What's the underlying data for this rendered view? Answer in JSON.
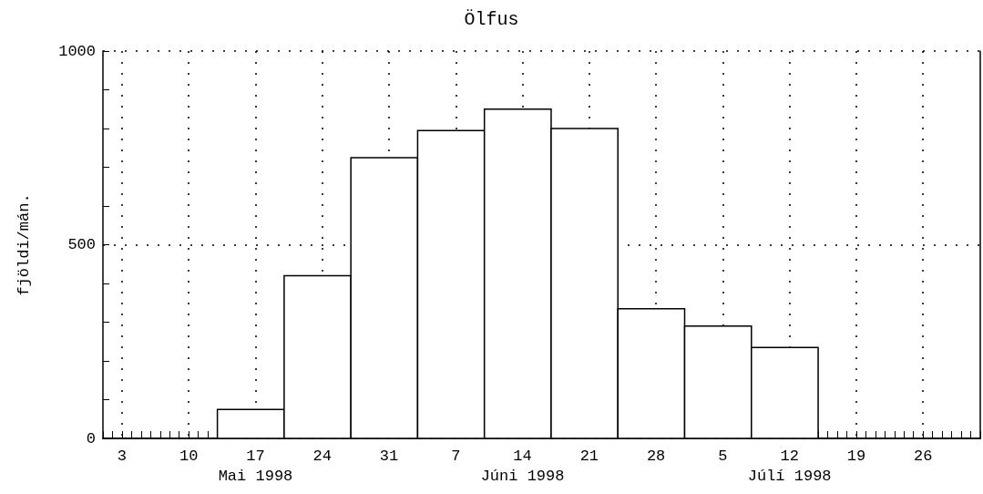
{
  "chart_data": {
    "type": "histogram",
    "title": "Ölfus",
    "ylabel": "fjöldi/mán.",
    "bins": [
      "1998-05-13",
      "1998-05-20",
      "1998-05-27",
      "1998-06-03",
      "1998-06-10",
      "1998-06-17",
      "1998-06-24",
      "1998-07-01",
      "1998-07-08",
      "1998-07-15"
    ],
    "values": [
      75,
      420,
      725,
      795,
      850,
      800,
      335,
      290,
      235
    ],
    "color": "#000000",
    "xlim": [
      "1998-05-01",
      "1998-08-01"
    ],
    "xticks": [
      {
        "value": "1998-05-01",
        "label": null
      },
      {
        "value": "1998-05-02",
        "label": null
      },
      {
        "value": "1998-05-03",
        "label": "3"
      },
      {
        "value": "1998-05-04",
        "label": null
      },
      {
        "value": "1998-05-05",
        "label": null
      },
      {
        "value": "1998-05-06",
        "label": null
      },
      {
        "value": "1998-05-07",
        "label": null
      },
      {
        "value": "1998-05-08",
        "label": null
      },
      {
        "value": "1998-05-09",
        "label": null
      },
      {
        "value": "1998-05-10",
        "label": "10"
      },
      {
        "value": "1998-05-11",
        "label": null
      },
      {
        "value": "1998-05-12",
        "label": null
      },
      {
        "value": "1998-05-13",
        "label": null
      },
      {
        "value": "1998-05-14",
        "label": null
      },
      {
        "value": "1998-05-15",
        "label": null
      },
      {
        "value": "1998-05-16",
        "label": null
      },
      {
        "value": "1998-05-17",
        "label": "17\nMai 1998"
      },
      {
        "value": "1998-05-18",
        "label": null
      },
      {
        "value": "1998-05-19",
        "label": null
      },
      {
        "value": "1998-05-20",
        "label": null
      },
      {
        "value": "1998-05-21",
        "label": null
      },
      {
        "value": "1998-05-22",
        "label": null
      },
      {
        "value": "1998-05-23",
        "label": null
      },
      {
        "value": "1998-05-24",
        "label": "24"
      },
      {
        "value": "1998-05-25",
        "label": null
      },
      {
        "value": "1998-05-26",
        "label": null
      },
      {
        "value": "1998-05-27",
        "label": null
      },
      {
        "value": "1998-05-28",
        "label": null
      },
      {
        "value": "1998-05-29",
        "label": null
      },
      {
        "value": "1998-05-30",
        "label": null
      },
      {
        "value": "1998-05-31",
        "label": "31"
      },
      {
        "value": "1998-06-01",
        "label": null
      },
      {
        "value": "1998-06-02",
        "label": null
      },
      {
        "value": "1998-06-03",
        "label": null
      },
      {
        "value": "1998-06-04",
        "label": null
      },
      {
        "value": "1998-06-05",
        "label": null
      },
      {
        "value": "1998-06-06",
        "label": null
      },
      {
        "value": "1998-06-07",
        "label": "7"
      },
      {
        "value": "1998-06-08",
        "label": null
      },
      {
        "value": "1998-06-09",
        "label": null
      },
      {
        "value": "1998-06-10",
        "label": null
      },
      {
        "value": "1998-06-11",
        "label": null
      },
      {
        "value": "1998-06-12",
        "label": null
      },
      {
        "value": "1998-06-13",
        "label": null
      },
      {
        "value": "1998-06-14",
        "label": "14\nJúni 1998"
      },
      {
        "value": "1998-06-15",
        "label": null
      },
      {
        "value": "1998-06-16",
        "label": null
      },
      {
        "value": "1998-06-17",
        "label": null
      },
      {
        "value": "1998-06-18",
        "label": null
      },
      {
        "value": "1998-06-19",
        "label": null
      },
      {
        "value": "1998-06-20",
        "label": null
      },
      {
        "value": "1998-06-21",
        "label": "21"
      },
      {
        "value": "1998-06-22",
        "label": null
      },
      {
        "value": "1998-06-23",
        "label": null
      },
      {
        "value": "1998-06-24",
        "label": null
      },
      {
        "value": "1998-06-25",
        "label": null
      },
      {
        "value": "1998-06-26",
        "label": null
      },
      {
        "value": "1998-06-27",
        "label": null
      },
      {
        "value": "1998-06-28",
        "label": "28"
      },
      {
        "value": "1998-06-29",
        "label": null
      },
      {
        "value": "1998-06-30",
        "label": null
      },
      {
        "value": "1998-07-01",
        "label": null
      },
      {
        "value": "1998-07-02",
        "label": null
      },
      {
        "value": "1998-07-03",
        "label": null
      },
      {
        "value": "1998-07-04",
        "label": null
      },
      {
        "value": "1998-07-05",
        "label": "5"
      },
      {
        "value": "1998-07-06",
        "label": null
      },
      {
        "value": "1998-07-07",
        "label": null
      },
      {
        "value": "1998-07-08",
        "label": null
      },
      {
        "value": "1998-07-09",
        "label": null
      },
      {
        "value": "1998-07-10",
        "label": null
      },
      {
        "value": "1998-07-11",
        "label": null
      },
      {
        "value": "1998-07-12",
        "label": "12\nJúlí 1998"
      },
      {
        "value": "1998-07-13",
        "label": null
      },
      {
        "value": "1998-07-14",
        "label": null
      },
      {
        "value": "1998-07-15",
        "label": null
      },
      {
        "value": "1998-07-16",
        "label": null
      },
      {
        "value": "1998-07-17",
        "label": null
      },
      {
        "value": "1998-07-18",
        "label": null
      },
      {
        "value": "1998-07-19",
        "label": "19"
      },
      {
        "value": "1998-07-20",
        "label": null
      },
      {
        "value": "1998-07-21",
        "label": null
      },
      {
        "value": "1998-07-22",
        "label": null
      },
      {
        "value": "1998-07-23",
        "label": null
      },
      {
        "value": "1998-07-24",
        "label": null
      },
      {
        "value": "1998-07-25",
        "label": null
      },
      {
        "value": "1998-07-26",
        "label": "26"
      },
      {
        "value": "1998-07-27",
        "label": null
      },
      {
        "value": "1998-07-28",
        "label": null
      },
      {
        "value": "1998-07-29",
        "label": null
      },
      {
        "value": "1998-07-30",
        "label": null
      },
      {
        "value": "1998-07-31",
        "label": null
      },
      {
        "value": "1998-08-01",
        "label": null
      }
    ],
    "ylim": [
      0,
      1000
    ],
    "yticks": [
      0,
      {
        "value": 100,
        "label": null
      },
      {
        "value": 200,
        "label": null
      },
      {
        "value": 300,
        "label": null
      },
      {
        "value": 400,
        "label": null
      },
      500,
      {
        "value": 600,
        "label": null
      },
      {
        "value": 700,
        "label": null
      },
      {
        "value": 800,
        "label": null
      },
      {
        "value": 900,
        "label": null
      },
      1000
    ],
    "grid": true
  }
}
